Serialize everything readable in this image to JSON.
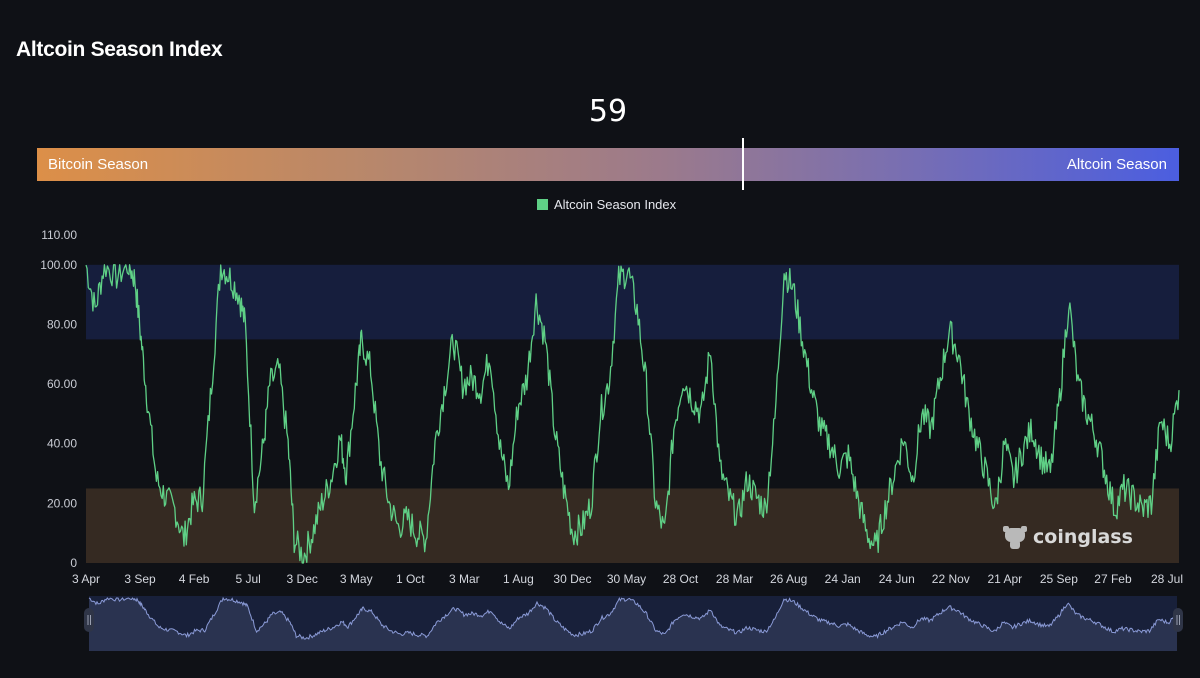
{
  "header": {
    "title": "Altcoin Season Index"
  },
  "gauge": {
    "current_value": "59",
    "left_label": "Bitcoin Season",
    "right_label": "Altcoin Season",
    "marker_value": 59
  },
  "legend": {
    "label": "Altcoin Season Index",
    "color": "#5fd086"
  },
  "watermark": {
    "text": "coinglass"
  },
  "colors": {
    "background": "#0f1116",
    "line": "#5fd086",
    "altcoin_zone": "#161e3d",
    "bitcoin_zone": "#352a22",
    "navigator_fill": "#2a3350",
    "navigator_line": "#8a9ad6"
  },
  "chart_data": {
    "type": "line",
    "title": "Altcoin Season Index",
    "xlabel": "",
    "ylabel": "",
    "ylim": [
      0,
      110
    ],
    "yticks": [
      "0",
      "20.00",
      "40.00",
      "60.00",
      "80.00",
      "100.00",
      "110.00"
    ],
    "categories": [
      "3 Apr",
      "3 Sep",
      "4 Feb",
      "5 Jul",
      "3 Dec",
      "3 May",
      "1 Oct",
      "3 Mar",
      "1 Aug",
      "30 Dec",
      "30 May",
      "28 Oct",
      "28 Mar",
      "26 Aug",
      "24 Jan",
      "24 Jun",
      "22 Nov",
      "21 Apr",
      "25 Sep",
      "27 Feb",
      "28 Jul"
    ],
    "bands": [
      {
        "name": "Altcoin Season zone",
        "from": 75,
        "to": 100,
        "color": "#161e3d"
      },
      {
        "name": "Bitcoin Season zone",
        "from": 0,
        "to": 25,
        "color": "#352a22"
      }
    ],
    "series": [
      {
        "name": "Altcoin Season Index",
        "color": "#5fd086",
        "points": [
          [
            0,
            100
          ],
          [
            0.3,
            85
          ],
          [
            0.6,
            100
          ],
          [
            1.0,
            96
          ],
          [
            1.4,
            100
          ],
          [
            1.6,
            95
          ],
          [
            1.8,
            75
          ],
          [
            2.0,
            55
          ],
          [
            2.3,
            28
          ],
          [
            2.6,
            22
          ],
          [
            2.9,
            18
          ],
          [
            3.2,
            8
          ],
          [
            3.5,
            20
          ],
          [
            3.8,
            22
          ],
          [
            4.1,
            60
          ],
          [
            4.4,
            100
          ],
          [
            4.7,
            96
          ],
          [
            5.0,
            90
          ],
          [
            5.2,
            80
          ],
          [
            5.5,
            20
          ],
          [
            5.8,
            40
          ],
          [
            6.0,
            60
          ],
          [
            6.3,
            65
          ],
          [
            6.6,
            40
          ],
          [
            6.8,
            8
          ],
          [
            7.1,
            2
          ],
          [
            7.4,
            10
          ],
          [
            7.7,
            20
          ],
          [
            8.0,
            28
          ],
          [
            8.3,
            42
          ],
          [
            8.5,
            30
          ],
          [
            8.8,
            58
          ],
          [
            9.0,
            75
          ],
          [
            9.3,
            65
          ],
          [
            9.6,
            35
          ],
          [
            9.9,
            20
          ],
          [
            10.2,
            12
          ],
          [
            10.5,
            15
          ],
          [
            10.8,
            10
          ],
          [
            11.1,
            8
          ],
          [
            11.4,
            40
          ],
          [
            11.7,
            58
          ],
          [
            12.0,
            75
          ],
          [
            12.3,
            60
          ],
          [
            12.6,
            62
          ],
          [
            12.9,
            58
          ],
          [
            13.2,
            70
          ],
          [
            13.5,
            40
          ],
          [
            13.8,
            25
          ],
          [
            14.1,
            52
          ],
          [
            14.4,
            62
          ],
          [
            14.7,
            88
          ],
          [
            15.0,
            75
          ],
          [
            15.3,
            45
          ],
          [
            15.6,
            25
          ],
          [
            15.9,
            10
          ],
          [
            16.2,
            12
          ],
          [
            16.5,
            20
          ],
          [
            16.8,
            50
          ],
          [
            17.1,
            62
          ],
          [
            17.4,
            95
          ],
          [
            17.7,
            98
          ],
          [
            18.0,
            85
          ],
          [
            18.3,
            60
          ],
          [
            18.6,
            20
          ],
          [
            18.9,
            10
          ],
          [
            19.2,
            45
          ],
          [
            19.5,
            62
          ],
          [
            19.8,
            55
          ],
          [
            20.1,
            50
          ],
          [
            20.4,
            72
          ],
          [
            20.7,
            32
          ],
          [
            21.0,
            22
          ],
          [
            21.3,
            15
          ],
          [
            21.6,
            28
          ],
          [
            21.9,
            22
          ],
          [
            22.2,
            18
          ],
          [
            22.5,
            48
          ],
          [
            22.8,
            98
          ],
          [
            23.1,
            92
          ],
          [
            23.4,
            75
          ],
          [
            23.7,
            58
          ],
          [
            24.0,
            45
          ],
          [
            24.3,
            40
          ],
          [
            24.6,
            32
          ],
          [
            24.9,
            36
          ],
          [
            25.2,
            22
          ],
          [
            25.5,
            10
          ],
          [
            25.8,
            5
          ],
          [
            26.1,
            18
          ],
          [
            26.4,
            30
          ],
          [
            26.7,
            42
          ],
          [
            27.0,
            28
          ],
          [
            27.3,
            50
          ],
          [
            27.6,
            45
          ],
          [
            27.9,
            62
          ],
          [
            28.2,
            78
          ],
          [
            28.5,
            70
          ],
          [
            28.8,
            52
          ],
          [
            29.1,
            40
          ],
          [
            29.4,
            30
          ],
          [
            29.7,
            18
          ],
          [
            30.0,
            40
          ],
          [
            30.3,
            28
          ],
          [
            30.6,
            38
          ],
          [
            30.9,
            45
          ],
          [
            31.2,
            35
          ],
          [
            31.5,
            30
          ],
          [
            31.8,
            55
          ],
          [
            32.1,
            88
          ],
          [
            32.4,
            60
          ],
          [
            32.7,
            50
          ],
          [
            33.0,
            42
          ],
          [
            33.3,
            30
          ],
          [
            33.6,
            18
          ],
          [
            33.9,
            25
          ],
          [
            34.2,
            22
          ],
          [
            34.5,
            18
          ],
          [
            34.8,
            20
          ],
          [
            35.1,
            48
          ],
          [
            35.4,
            40
          ],
          [
            35.7,
            58
          ]
        ]
      }
    ],
    "navigator": {
      "type": "area",
      "description": "Overview of full series range for zoom/scroll"
    }
  }
}
